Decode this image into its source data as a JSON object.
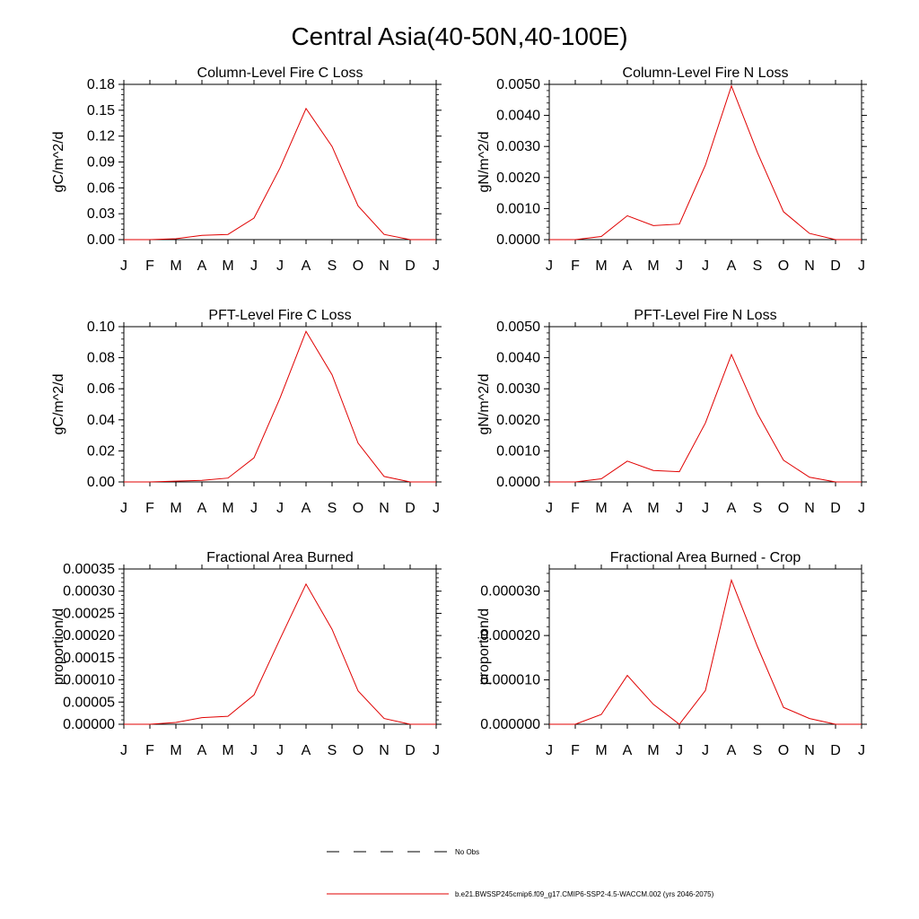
{
  "figure": {
    "title": "Central Asia(40-50N,40-100E)",
    "legend": {
      "obs_label": "No Obs",
      "model_label": "b.e21.BWSSP245cmip6.f09_g17.CMIP6-SSP2-4.5-WACCM.002 (yrs 2046-2075)",
      "obs_color": "#000000",
      "model_color": "#e00000"
    }
  },
  "chart_data": [
    {
      "type": "line",
      "title": "Column-Level Fire C Loss",
      "xlabel": "",
      "ylabel": "gC/m^2/d",
      "categories": [
        "J",
        "F",
        "M",
        "A",
        "M",
        "J",
        "J",
        "A",
        "S",
        "O",
        "N",
        "D",
        "J"
      ],
      "ylim": [
        0,
        0.18
      ],
      "yticks": [
        "0.00",
        "0.03",
        "0.06",
        "0.09",
        "0.12",
        "0.15",
        "0.18"
      ],
      "series": [
        {
          "name": "b.e21.BWSSP245cmip6.f09_g17.CMIP6-SSP2-4.5-WACCM.002 (yrs 2046-2075)",
          "color": "#e00000",
          "values": [
            0.0,
            0.0,
            0.001,
            0.005,
            0.006,
            0.025,
            0.083,
            0.152,
            0.108,
            0.039,
            0.006,
            0.0,
            0.0
          ]
        }
      ]
    },
    {
      "type": "line",
      "title": "Column-Level Fire N Loss",
      "xlabel": "",
      "ylabel": "gN/m^2/d",
      "categories": [
        "J",
        "F",
        "M",
        "A",
        "M",
        "J",
        "J",
        "A",
        "S",
        "O",
        "N",
        "D",
        "J"
      ],
      "ylim": [
        0,
        0.005
      ],
      "yticks": [
        "0.0000",
        "0.0010",
        "0.0020",
        "0.0030",
        "0.0040",
        "0.0050"
      ],
      "series": [
        {
          "name": "b.e21.BWSSP245cmip6.f09_g17.CMIP6-SSP2-4.5-WACCM.002 (yrs 2046-2075)",
          "color": "#e00000",
          "values": [
            0.0,
            0.0,
            0.0001,
            0.00077,
            0.00045,
            0.0005,
            0.0024,
            0.00495,
            0.0028,
            0.0009,
            0.0002,
            0.0,
            0.0
          ]
        }
      ]
    },
    {
      "type": "line",
      "title": "PFT-Level Fire C Loss",
      "xlabel": "",
      "ylabel": "gC/m^2/d",
      "categories": [
        "J",
        "F",
        "M",
        "A",
        "M",
        "J",
        "J",
        "A",
        "S",
        "O",
        "N",
        "D",
        "J"
      ],
      "ylim": [
        0,
        0.1
      ],
      "yticks": [
        "0.00",
        "0.02",
        "0.04",
        "0.06",
        "0.08",
        "0.10"
      ],
      "series": [
        {
          "name": "b.e21.BWSSP245cmip6.f09_g17.CMIP6-SSP2-4.5-WACCM.002 (yrs 2046-2075)",
          "color": "#e00000",
          "values": [
            0.0,
            0.0,
            0.0005,
            0.001,
            0.0025,
            0.0155,
            0.054,
            0.097,
            0.069,
            0.025,
            0.0035,
            0.0,
            0.0
          ]
        }
      ]
    },
    {
      "type": "line",
      "title": "PFT-Level Fire N Loss",
      "xlabel": "",
      "ylabel": "gN/m^2/d",
      "categories": [
        "J",
        "F",
        "M",
        "A",
        "M",
        "J",
        "J",
        "A",
        "S",
        "O",
        "N",
        "D",
        "J"
      ],
      "ylim": [
        0,
        0.005
      ],
      "yticks": [
        "0.0000",
        "0.0010",
        "0.0020",
        "0.0030",
        "0.0040",
        "0.0050"
      ],
      "series": [
        {
          "name": "b.e21.BWSSP245cmip6.f09_g17.CMIP6-SSP2-4.5-WACCM.002 (yrs 2046-2075)",
          "color": "#e00000",
          "values": [
            0.0,
            0.0,
            0.0001,
            0.00067,
            0.00037,
            0.00033,
            0.0019,
            0.0041,
            0.0022,
            0.0007,
            0.00015,
            0.0,
            0.0
          ]
        }
      ]
    },
    {
      "type": "line",
      "title": "Fractional Area Burned",
      "xlabel": "",
      "ylabel": "proportion/d",
      "categories": [
        "J",
        "F",
        "M",
        "A",
        "M",
        "J",
        "J",
        "A",
        "S",
        "O",
        "N",
        "D",
        "J"
      ],
      "ylim": [
        0,
        0.00035
      ],
      "yticks": [
        "0.00000",
        "0.00005",
        "0.00010",
        "0.00015",
        "0.00020",
        "0.00025",
        "0.00030",
        "0.00035"
      ],
      "series": [
        {
          "name": "b.e21.BWSSP245cmip6.f09_g17.CMIP6-SSP2-4.5-WACCM.002 (yrs 2046-2075)",
          "color": "#e00000",
          "values": [
            0.0,
            0.0,
            4e-06,
            1.5e-05,
            1.8e-05,
            6.6e-05,
            0.000192,
            0.000316,
            0.000214,
            7.5e-05,
            1.3e-05,
            0.0,
            0.0
          ]
        }
      ]
    },
    {
      "type": "line",
      "title": "Fractional Area Burned - Crop",
      "xlabel": "",
      "ylabel": "proportion/d",
      "categories": [
        "J",
        "F",
        "M",
        "A",
        "M",
        "J",
        "J",
        "A",
        "S",
        "O",
        "N",
        "D",
        "J"
      ],
      "ylim": [
        0,
        3.5e-05
      ],
      "yticks": [
        "0.000000",
        "0.000010",
        "0.000020",
        "0.000030"
      ],
      "series": [
        {
          "name": "b.e21.BWSSP245cmip6.f09_g17.CMIP6-SSP2-4.5-WACCM.002 (yrs 2046-2075)",
          "color": "#e00000",
          "values": [
            0.0,
            0.0,
            2.2e-06,
            1.1e-05,
            4.5e-06,
            0.0,
            7.6e-06,
            3.25e-05,
            1.75e-05,
            3.8e-06,
            1.3e-06,
            0.0,
            0.0
          ]
        }
      ]
    }
  ]
}
